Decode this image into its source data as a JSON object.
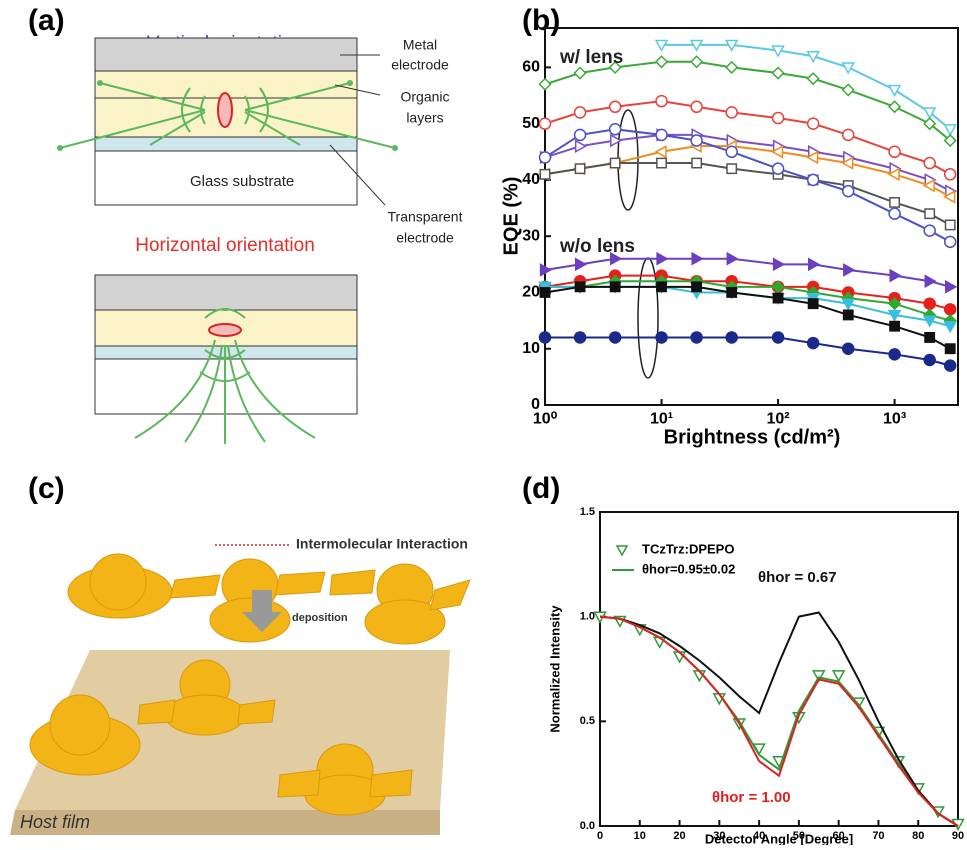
{
  "panel_a": {
    "label": "(a)",
    "vertical_title": "Vertical orientation",
    "horizontal_title": "Horizontal orientation",
    "metal_electrode": [
      "Metal",
      "electrode"
    ],
    "organic_layers": [
      "Organic",
      "layers"
    ],
    "glass_substrate": "Glass substrate",
    "transparent_electrode": [
      "Transparent",
      "electrode"
    ]
  },
  "panel_c": {
    "label": "(c)",
    "legend": "Intermolecular Interaction",
    "arrow_label": "deposition",
    "film_label": "Host film"
  },
  "chart_data": [
    {
      "type": "line",
      "panel_label": "(b)",
      "xscale": "log",
      "xlabel": "Brightness (cd/m²)",
      "ylabel": "EQE (%)",
      "annotations": [
        "w/ lens",
        "w/o lens"
      ],
      "x": [
        1,
        2,
        4,
        10,
        20,
        40,
        100,
        200,
        400,
        1000,
        2000,
        3000
      ],
      "xlim": [
        1,
        3500
      ],
      "xticks": [
        {
          "value": 1,
          "label": "10⁰"
        },
        {
          "value": 10,
          "label": "10¹"
        },
        {
          "value": 100,
          "label": "10²"
        },
        {
          "value": 1000,
          "label": "10³"
        }
      ],
      "ylim": [
        0,
        67
      ],
      "yticks": [
        0,
        10,
        20,
        30,
        40,
        50,
        60
      ],
      "series": [
        {
          "color": "#5bc8e8",
          "marker": "triangle-down",
          "filled": false,
          "values": [
            null,
            null,
            null,
            64,
            64,
            64,
            63,
            62,
            60,
            56,
            52,
            49
          ]
        },
        {
          "color": "#3aaa35",
          "marker": "diamond",
          "filled": false,
          "values": [
            57,
            59,
            60,
            61,
            61,
            60,
            59,
            58,
            56,
            53,
            50,
            47
          ]
        },
        {
          "color": "#e8433a",
          "marker": "circle",
          "filled": false,
          "values": [
            50,
            52,
            53,
            54,
            53,
            52,
            51,
            50,
            48,
            45,
            43,
            41
          ]
        },
        {
          "color": "#7b4fc1",
          "marker": "triangle-right",
          "filled": false,
          "values": [
            44,
            46,
            47,
            48,
            48,
            47,
            46,
            45,
            44,
            42,
            40,
            38
          ]
        },
        {
          "color": "#f08c1e",
          "marker": "triangle-left",
          "filled": false,
          "values": [
            41,
            42,
            43,
            45,
            46,
            46,
            45,
            44,
            43,
            41,
            39,
            37
          ]
        },
        {
          "color": "#555555",
          "marker": "square",
          "filled": false,
          "values": [
            41,
            42,
            43,
            43,
            43,
            42,
            41,
            40,
            39,
            36,
            34,
            32
          ]
        },
        {
          "color": "#4a52c8",
          "marker": "circle",
          "filled": false,
          "values": [
            44,
            48,
            49,
            48,
            47,
            45,
            42,
            40,
            38,
            34,
            31,
            29
          ]
        },
        {
          "color": "#6a3fc0",
          "marker": "triangle-right",
          "filled": true,
          "values": [
            24,
            25,
            26,
            26,
            26,
            26,
            25,
            25,
            24,
            23,
            22,
            21
          ]
        },
        {
          "color": "#e8201a",
          "marker": "circle",
          "filled": true,
          "values": [
            21,
            22,
            23,
            23,
            22,
            22,
            21,
            21,
            20,
            19,
            18,
            17
          ]
        },
        {
          "color": "#2fa830",
          "marker": "diamond",
          "filled": true,
          "values": [
            21,
            21,
            22,
            22,
            22,
            21,
            21,
            20,
            19,
            18,
            16,
            15
          ]
        },
        {
          "color": "#38bfe0",
          "marker": "triangle-down",
          "filled": true,
          "values": [
            21,
            21,
            21,
            21,
            20,
            20,
            19,
            19,
            18,
            16,
            15,
            14
          ]
        },
        {
          "color": "#111111",
          "marker": "square",
          "filled": true,
          "values": [
            20,
            21,
            21,
            21,
            21,
            20,
            19,
            18,
            16,
            14,
            12,
            10
          ]
        },
        {
          "color": "#1a2a8a",
          "marker": "circle",
          "filled": true,
          "values": [
            12,
            12,
            12,
            12,
            12,
            12,
            12,
            11,
            10,
            9,
            8,
            7
          ]
        }
      ]
    },
    {
      "type": "line",
      "panel_label": "(d)",
      "xlabel": "Detector Angle [Degree]",
      "ylabel": "Normalized Intensity",
      "annotations": [
        "θhor = 0.67",
        "θhor = 1.00"
      ],
      "x": [
        0,
        5,
        10,
        15,
        20,
        25,
        30,
        35,
        40,
        45,
        50,
        55,
        60,
        65,
        70,
        75,
        80,
        85,
        90
      ],
      "xlim": [
        0,
        90
      ],
      "xticks": [
        0,
        10,
        20,
        30,
        40,
        50,
        60,
        70,
        80,
        90
      ],
      "ylim": [
        0,
        1.5
      ],
      "yticks": [
        {
          "value": 0,
          "label": "0.0"
        },
        {
          "value": 0.5,
          "label": "0.5"
        },
        {
          "value": 1,
          "label": "1.0"
        },
        {
          "value": 1.5,
          "label": "1.5"
        }
      ],
      "series": [
        {
          "name": "TCzTrz:DPEPO",
          "color": "#2e9a3a",
          "marker": "triangle-down",
          "filled": false,
          "line": false,
          "values": [
            1.0,
            0.98,
            0.94,
            0.88,
            0.81,
            0.72,
            0.61,
            0.49,
            0.37,
            0.31,
            0.52,
            0.72,
            0.72,
            0.59,
            0.45,
            0.31,
            0.18,
            0.07,
            0.01
          ]
        },
        {
          "name": "θhor=0.95±0.02",
          "color": "#2e9a3a",
          "line": true,
          "values": [
            1.0,
            0.99,
            0.95,
            0.9,
            0.83,
            0.74,
            0.63,
            0.5,
            0.34,
            0.27,
            0.55,
            0.71,
            0.69,
            0.58,
            0.44,
            0.3,
            0.17,
            0.06,
            0.0
          ]
        },
        {
          "color": "#111111",
          "line": true,
          "values": [
            1.0,
            0.99,
            0.96,
            0.92,
            0.86,
            0.79,
            0.71,
            0.62,
            0.54,
            0.78,
            1.0,
            1.02,
            0.88,
            0.7,
            0.5,
            0.32,
            0.17,
            0.06,
            0.0
          ]
        },
        {
          "color": "#e02020",
          "line": true,
          "values": [
            1.0,
            0.99,
            0.95,
            0.9,
            0.83,
            0.74,
            0.63,
            0.49,
            0.31,
            0.24,
            0.53,
            0.7,
            0.68,
            0.57,
            0.43,
            0.29,
            0.16,
            0.06,
            0.0
          ]
        }
      ]
    }
  ]
}
